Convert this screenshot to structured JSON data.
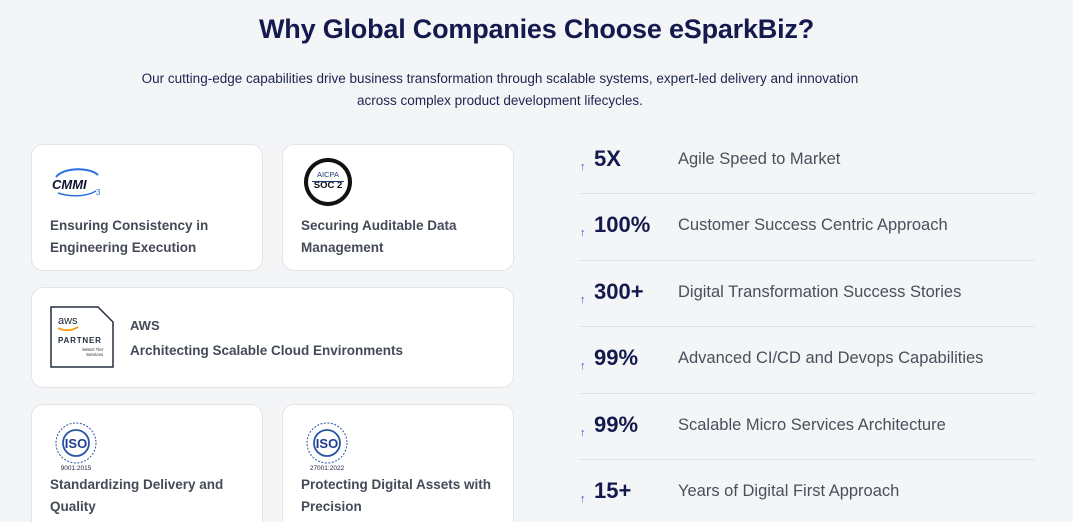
{
  "heading": "Why Global Companies Choose eSparkBiz?",
  "subtitle_line1": "Our cutting-edge capabilities drive business transformation through scalable systems, expert-led delivery and innovation",
  "subtitle_line2": "across complex product development lifecycles.",
  "cards": {
    "cmmi": {
      "logo_text": "CMMI",
      "logo_level": "3",
      "line1": "Ensuring Consistency in",
      "line2": "Engineering Execution"
    },
    "soc2": {
      "logo_top": "AICPA",
      "logo_main": "SOC 2",
      "line1": "Securing Auditable Data",
      "line2": "Management"
    },
    "aws": {
      "logo_brand": "aws",
      "logo_partner": "PARTNER",
      "logo_tier1": "Select Tier",
      "logo_tier2": "Services",
      "title": "AWS",
      "description": "Architecting Scalable Cloud Environments"
    },
    "iso9001": {
      "logo_main": "ISO",
      "logo_code": "9001:2015",
      "line1": "Standardizing Delivery and",
      "line2": "Quality"
    },
    "iso27001": {
      "logo_main": "ISO",
      "logo_code": "27001:2022",
      "line1": "Protecting Digital Assets with",
      "line2": "Precision"
    }
  },
  "stats": [
    {
      "value": "5X",
      "label": "Agile Speed to Market"
    },
    {
      "value": "100%",
      "label": "Customer Success Centric Approach"
    },
    {
      "value": "300+",
      "label": "Digital Transformation Success Stories"
    },
    {
      "value": "99%",
      "label": "Advanced CI/CD and Devops Capabilities"
    },
    {
      "value": "99%",
      "label": "Scalable Micro Services Architecture"
    },
    {
      "value": "15+",
      "label": "Years of Digital First Approach"
    }
  ],
  "stat_arrow": "↑",
  "colors": {
    "heading": "#141a4d",
    "accent_blue": "#2a54d6",
    "card_bg": "#ffffff",
    "page_bg": "#f4f5f7"
  }
}
